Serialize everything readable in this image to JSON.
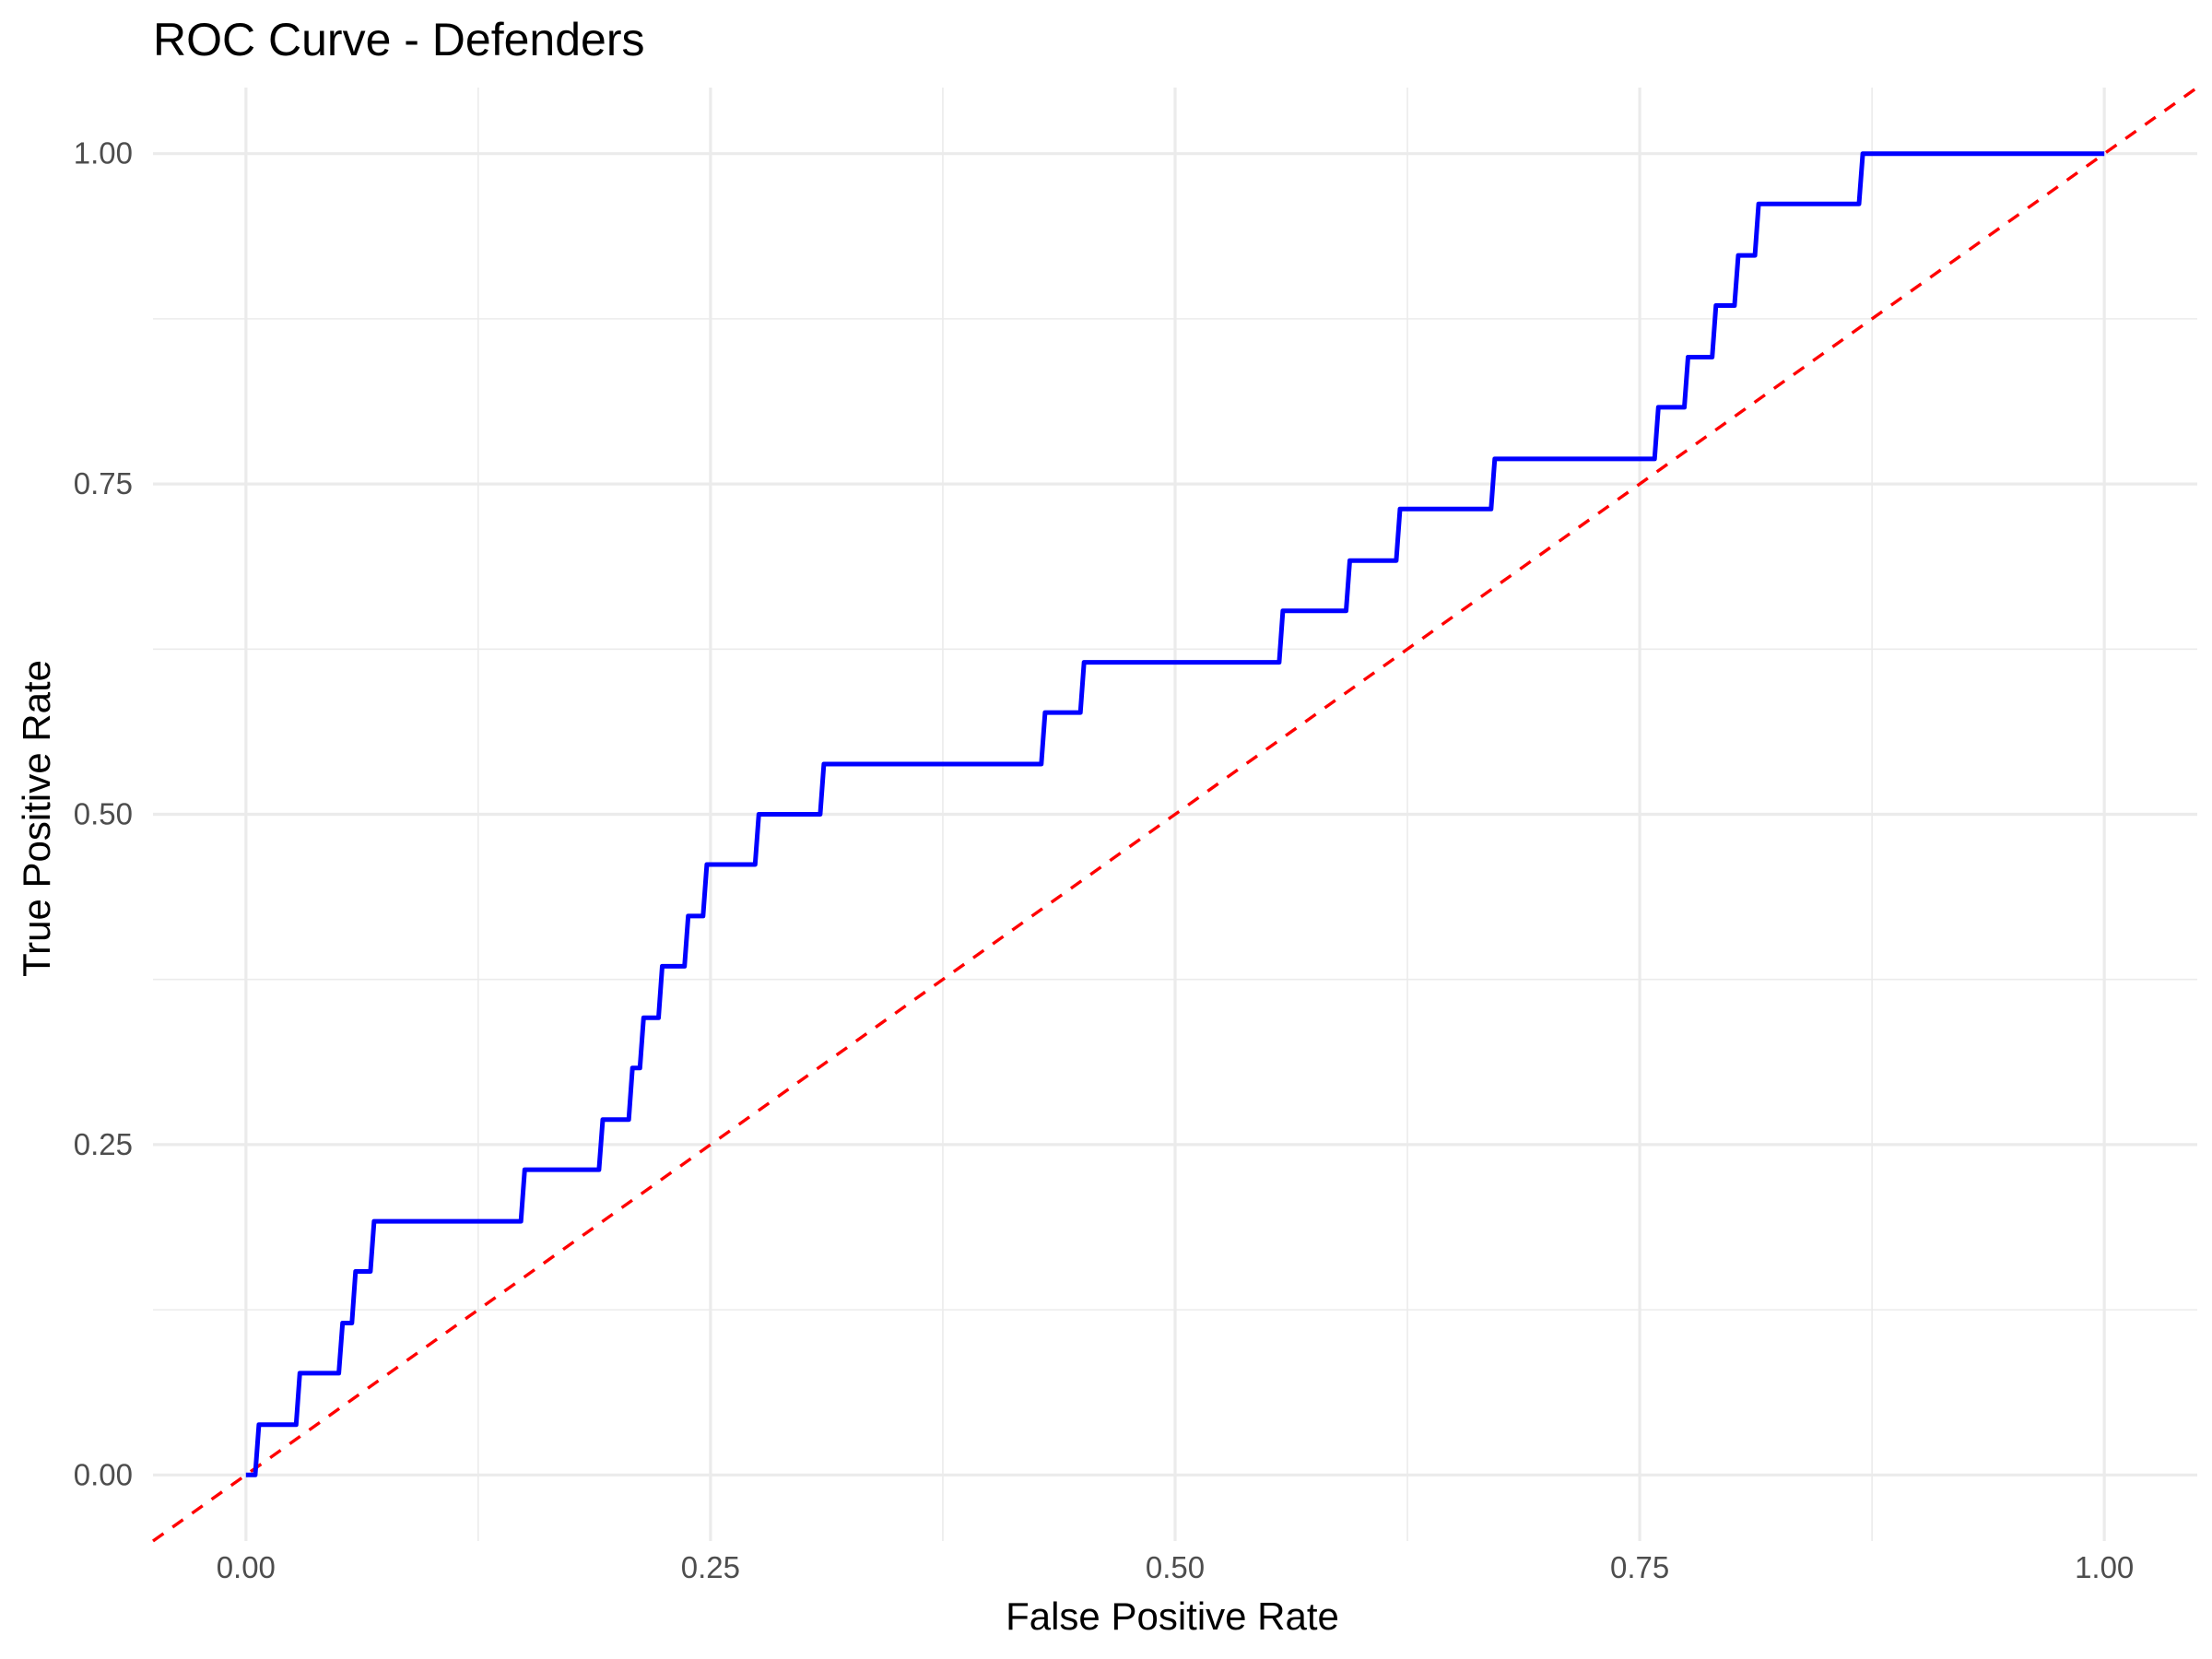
{
  "chart_data": {
    "type": "line",
    "title": "ROC Curve - Defenders",
    "xlabel": "False Positive Rate",
    "ylabel": "True Positive Rate",
    "xlim": [
      -0.05,
      1.05
    ],
    "ylim": [
      -0.05,
      1.05
    ],
    "x_ticks": [
      0,
      0.25,
      0.5,
      0.75,
      1
    ],
    "x_tick_labels": [
      "0.00",
      "0.25",
      "0.50",
      "0.75",
      "1.00"
    ],
    "y_ticks": [
      0,
      0.25,
      0.5,
      0.75,
      1
    ],
    "y_tick_labels": [
      "0.00",
      "0.25",
      "0.50",
      "0.75",
      "1.00"
    ],
    "grid": true,
    "legend": "none",
    "series": [
      {
        "color": "#0000ff",
        "style": "solid",
        "points": [
          [
            0.0,
            0.0
          ],
          [
            0.005,
            0.0
          ],
          [
            0.007,
            0.038
          ],
          [
            0.027,
            0.038
          ],
          [
            0.029,
            0.077
          ],
          [
            0.05,
            0.077
          ],
          [
            0.052,
            0.115
          ],
          [
            0.057,
            0.115
          ],
          [
            0.059,
            0.154
          ],
          [
            0.067,
            0.154
          ],
          [
            0.069,
            0.192
          ],
          [
            0.148,
            0.192
          ],
          [
            0.15,
            0.231
          ],
          [
            0.19,
            0.231
          ],
          [
            0.192,
            0.269
          ],
          [
            0.206,
            0.269
          ],
          [
            0.208,
            0.308
          ],
          [
            0.212,
            0.308
          ],
          [
            0.214,
            0.346
          ],
          [
            0.222,
            0.346
          ],
          [
            0.224,
            0.385
          ],
          [
            0.236,
            0.385
          ],
          [
            0.238,
            0.423
          ],
          [
            0.246,
            0.423
          ],
          [
            0.248,
            0.462
          ],
          [
            0.274,
            0.462
          ],
          [
            0.276,
            0.5
          ],
          [
            0.309,
            0.5
          ],
          [
            0.311,
            0.538
          ],
          [
            0.428,
            0.538
          ],
          [
            0.43,
            0.577
          ],
          [
            0.449,
            0.577
          ],
          [
            0.451,
            0.615
          ],
          [
            0.556,
            0.615
          ],
          [
            0.558,
            0.654
          ],
          [
            0.592,
            0.654
          ],
          [
            0.594,
            0.692
          ],
          [
            0.619,
            0.692
          ],
          [
            0.621,
            0.731
          ],
          [
            0.67,
            0.731
          ],
          [
            0.672,
            0.769
          ],
          [
            0.758,
            0.769
          ],
          [
            0.76,
            0.808
          ],
          [
            0.774,
            0.808
          ],
          [
            0.776,
            0.846
          ],
          [
            0.789,
            0.846
          ],
          [
            0.791,
            0.885
          ],
          [
            0.801,
            0.885
          ],
          [
            0.803,
            0.923
          ],
          [
            0.812,
            0.923
          ],
          [
            0.814,
            0.962
          ],
          [
            0.868,
            0.962
          ],
          [
            0.87,
            1.0
          ],
          [
            1.0,
            1.0
          ]
        ]
      },
      {
        "color": "#ff0000",
        "style": "dashed",
        "points": [
          [
            -0.05,
            -0.05
          ],
          [
            1.05,
            1.05
          ]
        ]
      }
    ]
  }
}
